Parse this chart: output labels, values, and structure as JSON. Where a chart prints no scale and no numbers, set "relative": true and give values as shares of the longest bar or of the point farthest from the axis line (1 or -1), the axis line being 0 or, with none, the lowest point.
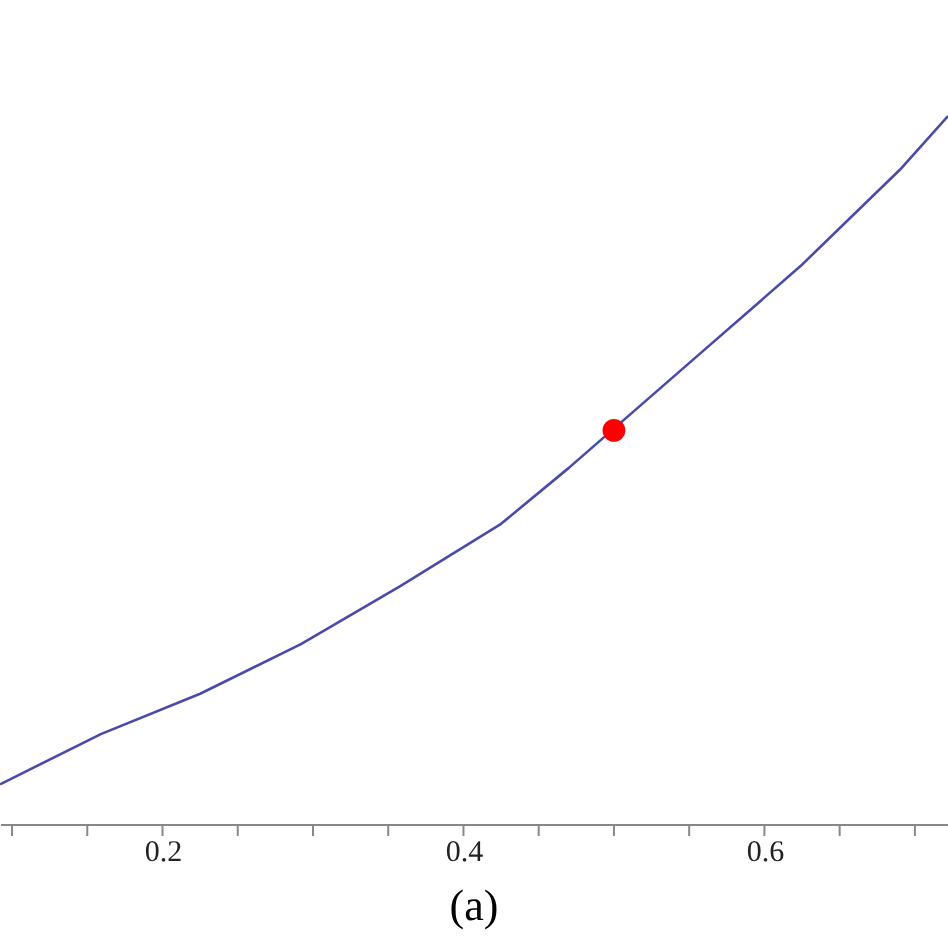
{
  "chart_data": {
    "type": "line",
    "relative": true,
    "annotations": [
      "(a)"
    ],
    "xlim": [
      0.092,
      0.722
    ],
    "xticks": [
      {
        "value": 0.1,
        "label": null
      },
      {
        "value": 0.15,
        "label": null
      },
      0.2,
      {
        "value": 0.25,
        "label": null
      },
      {
        "value": 0.3,
        "label": null
      },
      {
        "value": 0.35,
        "label": null
      },
      0.4,
      {
        "value": 0.45,
        "label": null
      },
      {
        "value": 0.5,
        "label": null
      },
      {
        "value": 0.55,
        "label": null
      },
      0.6,
      {
        "value": 0.65,
        "label": null
      },
      {
        "value": 0.7,
        "label": null
      }
    ],
    "grid": false,
    "series": [
      {
        "color": "#4a4aaa",
        "marker": "none",
        "line_style": "solid",
        "x": [
          0.092,
          0.159,
          0.225,
          0.292,
          0.358,
          0.425,
          0.47,
          0.557,
          0.624,
          0.69,
          0.722
        ],
        "values": [
          0.056,
          0.127,
          0.184,
          0.254,
          0.336,
          0.424,
          0.503,
          0.664,
          0.788,
          0.924,
          1
        ]
      },
      {
        "type": "scatter",
        "color": "#ff0000",
        "marker": "circle",
        "x": [
          0.5
        ],
        "values": [
          0.556
        ]
      }
    ]
  }
}
